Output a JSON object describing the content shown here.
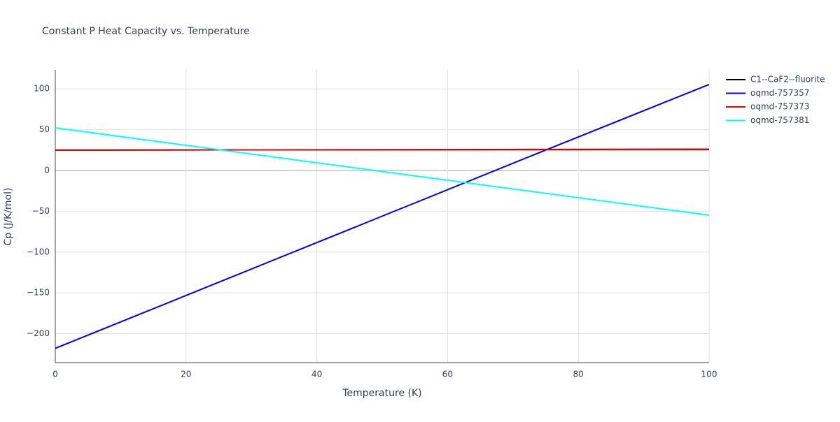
{
  "chart_data": {
    "type": "line",
    "title": "Constant P Heat Capacity vs. Temperature",
    "x_label": "Temperature (K)",
    "y_label": "Cp (J/K/mol)",
    "x": [
      0,
      25,
      50,
      75,
      100
    ],
    "series": [
      {
        "name": "C1--CaF2--fluorite",
        "color": "#000000",
        "values": [
          24.9,
          25.2,
          25.5,
          25.8,
          26.0
        ]
      },
      {
        "name": "oqmd-757357",
        "color": "#0000ee",
        "values": [
          -218,
          -137,
          -56,
          25,
          105.4
        ]
      },
      {
        "name": "oqmd-757373",
        "color": "#ee0000",
        "values": [
          25.0,
          25.2,
          25.3,
          25.5,
          25.6
        ]
      },
      {
        "name": "oqmd-757381",
        "color": "#00ffff",
        "values": [
          52.2,
          25.5,
          -1.3,
          -28.0,
          -54.8
        ]
      }
    ],
    "xlim": [
      0,
      100
    ],
    "xticks": [
      0,
      20,
      40,
      60,
      80,
      100
    ],
    "ylim": [
      -235.5,
      123.3
    ],
    "yticks": [
      {
        "value": -200,
        "label": "−200"
      },
      {
        "value": -150,
        "label": "−150"
      },
      {
        "value": -100,
        "label": "−100"
      },
      {
        "value": -50,
        "label": "−50"
      },
      0,
      50,
      100
    ],
    "grid": true,
    "legend": "right"
  }
}
